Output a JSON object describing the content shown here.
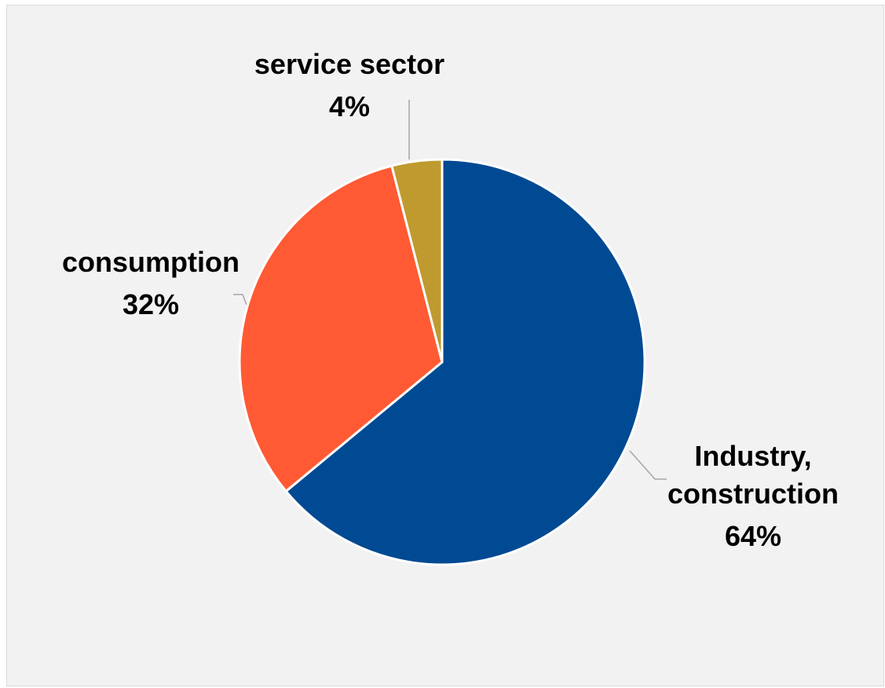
{
  "chart_data": {
    "type": "pie",
    "title": "",
    "slices": [
      {
        "name": "Industry, construction",
        "name_lines": [
          "Industry,",
          "construction"
        ],
        "value": 64,
        "label": "64%",
        "color": "#004a93"
      },
      {
        "name": "consumption",
        "name_lines": [
          "consumption"
        ],
        "value": 32,
        "label": "32%",
        "color": "#ff5a33"
      },
      {
        "name": "service sector",
        "name_lines": [
          "service sector"
        ],
        "value": 4,
        "label": "4%",
        "color": "#bf9a2f"
      }
    ],
    "start_angle": "12 o'clock",
    "direction": "clockwise",
    "legend": "none",
    "data_labels": "outside with leader lines",
    "background_color": "#f2f2f2",
    "slice_border_color": "#ffffff"
  }
}
